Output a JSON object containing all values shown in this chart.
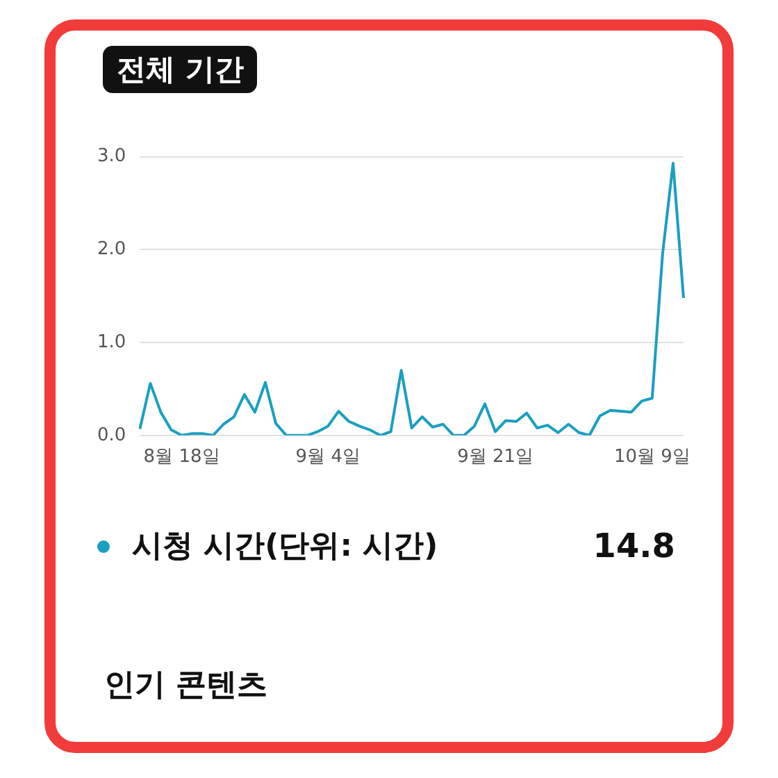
{
  "chart_data": {
    "type": "line",
    "title": "전체 기간",
    "categories": [
      null,
      null,
      null,
      null,
      "8월 18일",
      null,
      null,
      null,
      null,
      null,
      null,
      null,
      null,
      null,
      null,
      null,
      null,
      null,
      "9월 4일",
      null,
      null,
      null,
      null,
      null,
      null,
      null,
      null,
      null,
      null,
      null,
      null,
      null,
      null,
      null,
      "9월 21일",
      null,
      null,
      null,
      null,
      null,
      null,
      null,
      null,
      null,
      null,
      null,
      null,
      null,
      null,
      "10월 9일",
      null,
      null,
      null
    ],
    "series": [
      {
        "name": "시청 시간(단위: 시간)",
        "color": "#1a9fc0",
        "values": [
          0.07,
          0.56,
          0.25,
          0.06,
          0.0,
          0.02,
          0.02,
          0.0,
          0.12,
          0.2,
          0.44,
          0.25,
          0.57,
          0.13,
          0.0,
          0.0,
          0.0,
          0.04,
          0.1,
          0.26,
          0.15,
          0.1,
          0.06,
          0.0,
          0.04,
          0.7,
          0.08,
          0.2,
          0.09,
          0.12,
          0.0,
          0.0,
          0.1,
          0.34,
          0.04,
          0.16,
          0.15,
          0.24,
          0.08,
          0.11,
          0.03,
          0.12,
          0.03,
          0.0,
          0.21,
          0.27,
          0.26,
          0.25,
          0.37,
          0.4,
          1.96,
          2.93,
          1.48
        ]
      }
    ],
    "ylim": [
      0,
      3
    ],
    "yticks": [
      {
        "value": 0,
        "label": "0.0"
      },
      {
        "value": 1,
        "label": "1.0"
      },
      {
        "value": 2,
        "label": "2.0"
      },
      {
        "value": 3,
        "label": "3.0"
      }
    ],
    "grid": "y",
    "legend": "bottom",
    "marker": "none",
    "line_style": "solid",
    "annotations": [
      "14.8",
      "인기 콘텐츠"
    ]
  }
}
